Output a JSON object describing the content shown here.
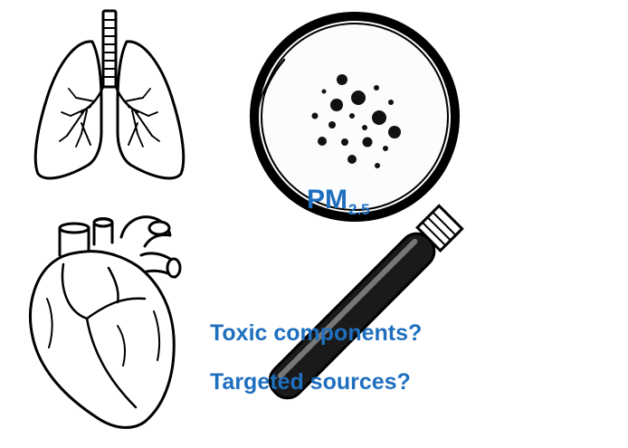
{
  "colors": {
    "accent_text": "#1f6fbf",
    "outline": "#000000",
    "lens_tint": "#fbfcfe",
    "particle": "#111111"
  },
  "icons": {
    "lungs": "lungs-icon",
    "heart": "heart-icon",
    "magnifier": "magnifying-glass-icon",
    "particles": "particulate-matter-icon"
  },
  "magnifier": {
    "label_main": "PM",
    "label_sub": "2.5"
  },
  "questions": {
    "toxic": "Toxic components?",
    "sources": "Targeted sources?"
  }
}
